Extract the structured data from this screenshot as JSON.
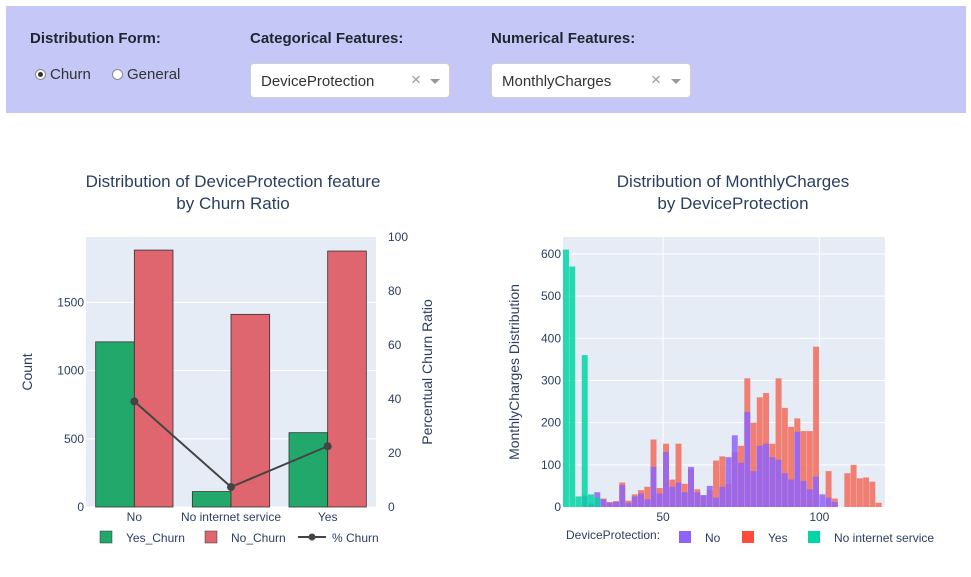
{
  "controls": {
    "distribution_form": {
      "title": "Distribution Form:",
      "options": [
        {
          "label": "Churn",
          "selected": true
        },
        {
          "label": "General",
          "selected": false
        }
      ]
    },
    "categorical": {
      "title": "Categorical Features:",
      "value": "DeviceProtection"
    },
    "numerical": {
      "title": "Numerical Features:",
      "value": "MonthlyCharges"
    },
    "clear_icon": "×"
  },
  "colors": {
    "panel_bg": "#c5c8f7",
    "plot_bg": "#e5ecf6",
    "yes_churn": "#22a86b",
    "no_churn": "#df666f",
    "churn_line": "#444444",
    "no": "#8f63f9",
    "yes": "#f26b5b",
    "no_internet": "#00d6a3"
  },
  "chart_data": [
    {
      "type": "bar",
      "title": [
        "Distribution of DeviceProtection feature",
        "by Churn Ratio"
      ],
      "categories": [
        "No",
        "No internet service",
        "Yes"
      ],
      "series": [
        {
          "name": "Yes_Churn",
          "values": [
            1211,
            113,
            545
          ]
        },
        {
          "name": "No_Churn",
          "values": [
            1884,
            1413,
            1877
          ]
        },
        {
          "name": "% Churn",
          "axis": "y2",
          "values": [
            39.1,
            7.4,
            22.5
          ]
        }
      ],
      "ylabel": "Count",
      "y2label": "Percentual Churn Ratio",
      "ylim": [
        0,
        1980
      ],
      "yticks": [
        0,
        500,
        1000,
        1500
      ],
      "y2lim": [
        0,
        100
      ],
      "y2ticks": [
        0,
        20,
        40,
        60,
        80,
        100
      ],
      "legend": {
        "position": "bottom"
      }
    },
    {
      "type": "bar",
      "title": [
        "Distribution of MonthlyCharges",
        "by DeviceProtection"
      ],
      "ylabel": "MonthlyCharges Distribution",
      "xlim": [
        18,
        121
      ],
      "ylim": [
        0,
        640
      ],
      "xticks": [
        50,
        100
      ],
      "yticks": [
        0,
        100,
        200,
        300,
        400,
        500,
        600
      ],
      "bin_width": 2,
      "legend": {
        "title": "DeviceProtection:",
        "position": "bottom"
      },
      "series": [
        {
          "name": "No",
          "bins": [
            [
              24,
              27
            ],
            [
              26,
              8
            ],
            [
              28,
              35
            ],
            [
              30,
              18
            ],
            [
              32,
              10
            ],
            [
              34,
              12
            ],
            [
              36,
              52
            ],
            [
              38,
              10
            ],
            [
              40,
              25
            ],
            [
              42,
              32
            ],
            [
              44,
              18
            ],
            [
              46,
              95
            ],
            [
              48,
              32
            ],
            [
              50,
              130
            ],
            [
              52,
              48
            ],
            [
              54,
              58
            ],
            [
              56,
              35
            ],
            [
              58,
              95
            ],
            [
              60,
              35
            ],
            [
              62,
              28
            ],
            [
              64,
              50
            ],
            [
              66,
              22
            ],
            [
              68,
              48
            ],
            [
              70,
              118
            ],
            [
              72,
              170
            ],
            [
              74,
              105
            ],
            [
              76,
              225
            ],
            [
              78,
              85
            ],
            [
              80,
              145
            ],
            [
              82,
              150
            ],
            [
              84,
              118
            ],
            [
              86,
              112
            ],
            [
              88,
              80
            ],
            [
              90,
              65
            ],
            [
              92,
              178
            ],
            [
              94,
              62
            ],
            [
              96,
              42
            ],
            [
              98,
              72
            ],
            [
              100,
              30
            ],
            [
              102,
              22
            ],
            [
              104,
              12
            ]
          ]
        },
        {
          "name": "Yes",
          "bins": [
            [
              30,
              20
            ],
            [
              32,
              12
            ],
            [
              34,
              14
            ],
            [
              36,
              58
            ],
            [
              38,
              15
            ],
            [
              40,
              30
            ],
            [
              42,
              40
            ],
            [
              44,
              48
            ],
            [
              46,
              160
            ],
            [
              48,
              45
            ],
            [
              50,
              150
            ],
            [
              52,
              65
            ],
            [
              54,
              150
            ],
            [
              56,
              55
            ],
            [
              58,
              90
            ],
            [
              60,
              42
            ],
            [
              62,
              28
            ],
            [
              64,
              40
            ],
            [
              66,
              110
            ],
            [
              68,
              120
            ],
            [
              70,
              55
            ],
            [
              72,
              130
            ],
            [
              74,
              145
            ],
            [
              76,
              305
            ],
            [
              78,
              200
            ],
            [
              80,
              260
            ],
            [
              82,
              270
            ],
            [
              84,
              150
            ],
            [
              86,
              305
            ],
            [
              88,
              235
            ],
            [
              90,
              190
            ],
            [
              92,
              210
            ],
            [
              94,
              180
            ],
            [
              96,
              180
            ],
            [
              98,
              380
            ],
            [
              100,
              0
            ],
            [
              102,
              85
            ],
            [
              104,
              20
            ],
            [
              106,
              0
            ],
            [
              108,
              80
            ],
            [
              110,
              100
            ],
            [
              112,
              68
            ],
            [
              114,
              70
            ],
            [
              116,
              60
            ],
            [
              118,
              10
            ]
          ]
        },
        {
          "name": "No internet service",
          "bins": [
            [
              18,
              610
            ],
            [
              20,
              570
            ],
            [
              22,
              25
            ],
            [
              24,
              360
            ],
            [
              26,
              30
            ],
            [
              28,
              22
            ]
          ]
        }
      ]
    }
  ]
}
